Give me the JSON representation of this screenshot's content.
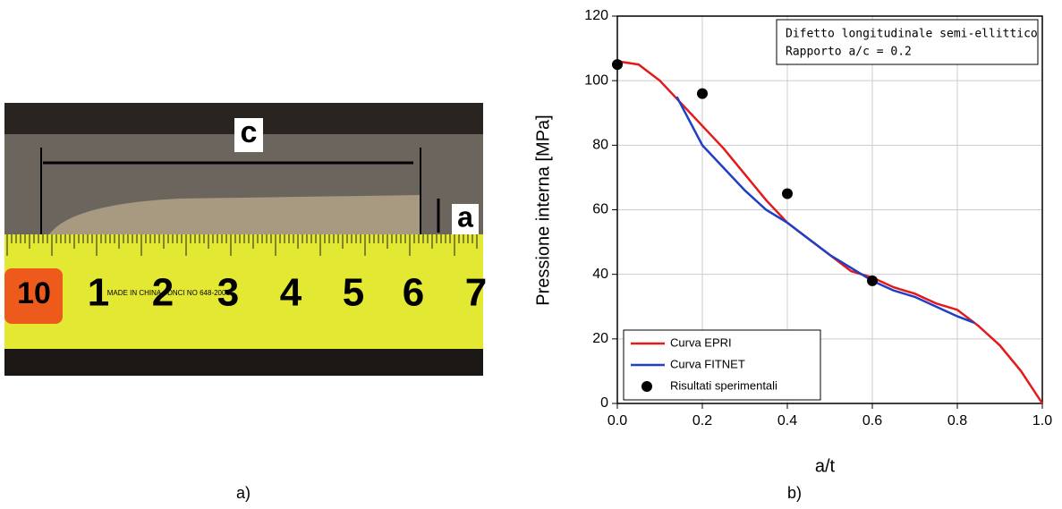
{
  "photo": {
    "labels": [
      "c",
      "a"
    ],
    "ruler_numbers": [
      "10",
      "1",
      "2",
      "3",
      "4",
      "5",
      "6",
      "7"
    ],
    "ruler_marks": [
      "MADE IN CHINA",
      "DNCI NO 648-2001"
    ]
  },
  "captions": [
    "a)",
    "b)"
  ],
  "chart_data": {
    "type": "line",
    "xlabel": "a/t",
    "ylabel": "Pressione interna [MPa]",
    "annotations": [
      "Difetto longitudinale semi-ellittico",
      "Rapporto a/c = 0.2"
    ],
    "xlim": [
      0,
      1
    ],
    "ylim": [
      0,
      120
    ],
    "xticks": [
      {
        "value": 0,
        "label": "0.0"
      },
      0.2,
      0.4,
      0.6,
      0.8,
      {
        "value": 1,
        "label": "1.0"
      }
    ],
    "yticks": [
      0,
      20,
      40,
      60,
      80,
      100,
      120
    ],
    "grid": true,
    "legend": "lower left",
    "series": [
      {
        "name": "Curva EPRI",
        "color": "#e31a1c",
        "x": [
          0,
          0.05,
          0.1,
          0.15,
          0.2,
          0.25,
          0.3,
          0.35,
          0.4,
          0.45,
          0.5,
          0.55,
          0.6,
          0.65,
          0.7,
          0.75,
          0.8,
          0.85,
          0.9,
          0.95,
          1.0
        ],
        "values": [
          106,
          105,
          100,
          93,
          86,
          79,
          71,
          63,
          56,
          51,
          46,
          41,
          39,
          36,
          34,
          31,
          29,
          24,
          18,
          10,
          0
        ]
      },
      {
        "name": "Curva FITNET",
        "color": "#1f3fc4",
        "x": [
          0.14,
          0.2,
          0.25,
          0.3,
          0.35,
          0.4,
          0.45,
          0.5,
          0.55,
          0.6,
          0.65,
          0.7,
          0.75,
          0.8,
          0.84
        ],
        "values": [
          95,
          80,
          73,
          66,
          60,
          56,
          51,
          46,
          42,
          38,
          35,
          33,
          30,
          27,
          25
        ]
      },
      {
        "name": "Risultati sperimentali",
        "type": "scatter",
        "color": "#000000",
        "x": [
          0,
          0.2,
          0.4,
          0.6
        ],
        "values": [
          105,
          96,
          65,
          38
        ]
      }
    ]
  }
}
